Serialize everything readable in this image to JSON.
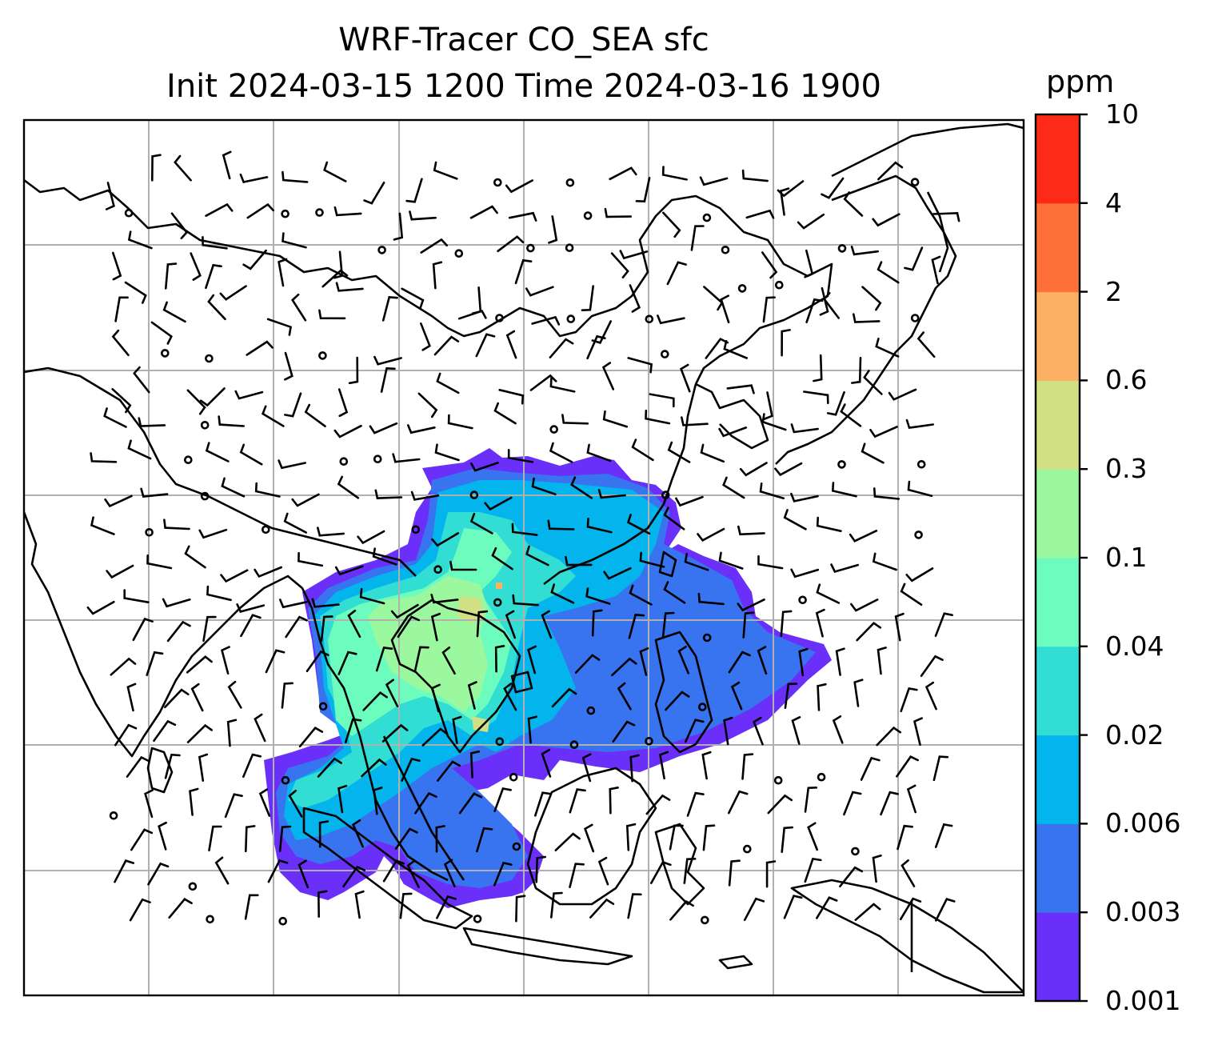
{
  "figure": {
    "title_line1": "WRF-Tracer CO_SEA sfc",
    "title_line2": "Init 2024-03-15 1200 Time 2024-03-16 1900"
  },
  "colorbar": {
    "unit": "ppm",
    "ticks": [
      "10",
      "4",
      "2",
      "0.6",
      "0.3",
      "0.1",
      "0.04",
      "0.02",
      "0.006",
      "0.003",
      "0.001"
    ],
    "colors": [
      "#6a30fa",
      "#3873f0",
      "#04b4ec",
      "#32ddd4",
      "#6cfcbe",
      "#9cf89e",
      "#d2e084",
      "#fbb064",
      "#fe7038",
      "#fe2a18"
    ]
  },
  "layers": {
    "tracer_field": "CO_SEA surface concentration",
    "wind": "wind barbs (calm circles)",
    "background": "coastlines and country borders",
    "gridlines": true
  }
}
